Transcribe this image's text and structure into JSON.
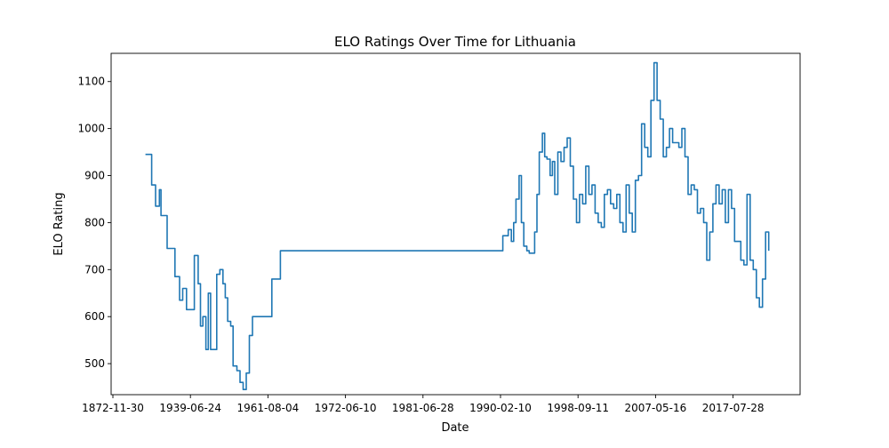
{
  "chart_data": {
    "type": "line",
    "title": "ELO Ratings Over Time for Lithuania",
    "xlabel": "Date",
    "ylabel": "ELO Rating",
    "x_tick_labels": [
      "1872-11-30",
      "1939-06-24",
      "1961-08-04",
      "1972-06-10",
      "1981-06-28",
      "1990-02-10",
      "1998-09-11",
      "2007-05-16",
      "2017-07-28"
    ],
    "y_tick_labels": [
      "500",
      "600",
      "700",
      "800",
      "900",
      "1000",
      "1100"
    ],
    "y_ticks": [
      500,
      600,
      700,
      800,
      900,
      1000,
      1100
    ],
    "ylim": [
      434,
      1160
    ],
    "grid": false,
    "series_color": "#1f77b4",
    "series": [
      {
        "x_step_index": [
          0.42,
          0.49,
          0.5,
          0.55,
          0.6,
          0.62,
          0.66,
          0.7,
          0.75,
          0.8,
          0.86,
          0.9,
          0.95,
          1.0,
          1.05,
          1.1,
          1.13,
          1.16,
          1.2,
          1.23,
          1.26,
          1.3,
          1.34,
          1.38,
          1.42,
          1.45,
          1.48,
          1.52,
          1.55,
          1.6,
          1.64,
          1.68,
          1.72,
          1.76,
          1.8,
          1.84,
          1.88,
          1.92,
          1.96,
          2.05,
          2.1,
          2.16,
          2.2,
          2.5,
          5.0,
          5.03,
          5.07,
          5.1,
          5.14,
          5.17,
          5.2,
          5.24,
          5.27,
          5.3,
          5.34,
          5.37,
          5.4,
          5.44,
          5.47,
          5.5,
          5.54,
          5.57,
          5.6,
          5.64,
          5.67,
          5.7,
          5.74,
          5.78,
          5.82,
          5.86,
          5.9,
          5.94,
          5.98,
          6.02,
          6.06,
          6.1,
          6.14,
          6.18,
          6.22,
          6.26,
          6.3,
          6.34,
          6.38,
          6.42,
          6.46,
          6.5,
          6.54,
          6.58,
          6.62,
          6.66,
          6.7,
          6.74,
          6.78,
          6.82,
          6.86,
          6.9,
          6.94,
          6.98,
          7.02,
          7.06,
          7.1,
          7.14,
          7.18,
          7.22,
          7.26,
          7.3,
          7.34,
          7.38,
          7.42,
          7.46,
          7.5,
          7.54,
          7.58,
          7.62,
          7.66,
          7.7,
          7.74,
          7.78,
          7.82,
          7.86,
          7.9,
          7.94,
          7.98,
          8.02,
          8.06,
          8.1,
          8.14,
          8.18,
          8.22,
          8.26,
          8.3,
          8.34,
          8.38,
          8.42,
          8.46
        ],
        "y": [
          945,
          945,
          880,
          835,
          870,
          815,
          815,
          745,
          745,
          685,
          635,
          660,
          615,
          615,
          730,
          670,
          580,
          600,
          530,
          650,
          530,
          530,
          690,
          700,
          670,
          640,
          590,
          580,
          495,
          485,
          460,
          445,
          480,
          560,
          600,
          600,
          600,
          600,
          600,
          680,
          680,
          740,
          740,
          740,
          740,
          772,
          772,
          785,
          760,
          800,
          850,
          900,
          800,
          750,
          740,
          735,
          735,
          780,
          860,
          950,
          990,
          940,
          935,
          900,
          930,
          860,
          950,
          930,
          960,
          980,
          920,
          850,
          800,
          860,
          840,
          920,
          860,
          880,
          820,
          800,
          790,
          860,
          870,
          840,
          830,
          860,
          800,
          780,
          880,
          820,
          780,
          890,
          900,
          1010,
          960,
          940,
          1060,
          1140,
          1060,
          1020,
          940,
          960,
          1000,
          970,
          970,
          960,
          1000,
          940,
          860,
          880,
          870,
          820,
          830,
          800,
          720,
          780,
          840,
          880,
          840,
          870,
          800,
          870,
          830,
          760,
          760,
          720,
          710,
          860,
          720,
          700,
          640,
          620,
          680,
          780,
          740
        ]
      }
    ]
  }
}
